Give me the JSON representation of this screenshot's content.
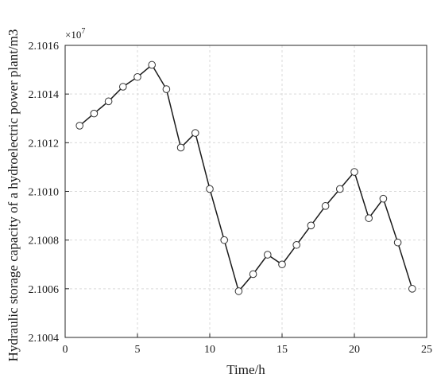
{
  "chart_data": {
    "type": "line",
    "xlabel": "Time/h",
    "ylabel": "Hydraulic storage capacity of a hydroelectric power plant/m3",
    "y_scale_label_base": "×10",
    "y_scale_label_exp": "7",
    "xlim": [
      0,
      25
    ],
    "ylim": [
      2.1004,
      2.1016
    ],
    "x_ticks": [
      0,
      5,
      10,
      15,
      20,
      25
    ],
    "x_tick_labels": [
      "0",
      "5",
      "10",
      "15",
      "20",
      "25"
    ],
    "y_ticks": [
      2.1004,
      2.1006,
      2.1008,
      2.101,
      2.1012,
      2.1014,
      2.1016
    ],
    "y_tick_labels": [
      "2.1004",
      "2.1006",
      "2.1008",
      "2.1010",
      "2.1012",
      "2.1014",
      "2.1016"
    ],
    "grid": true,
    "marker": "open-circle",
    "series": [
      {
        "x": [
          1,
          2,
          3,
          4,
          5,
          6,
          7,
          8,
          9,
          10,
          11,
          12,
          13,
          14,
          15,
          16,
          17,
          18,
          19,
          20,
          21,
          22,
          23,
          24
        ],
        "values": [
          2.10127,
          2.10132,
          2.10137,
          2.10143,
          2.10147,
          2.10152,
          2.10142,
          2.10118,
          2.10124,
          2.10101,
          2.1008,
          2.10059,
          2.10066,
          2.10074,
          2.1007,
          2.10078,
          2.10086,
          2.10094,
          2.10101,
          2.10108,
          2.10089,
          2.10097,
          2.10079,
          2.1006
        ],
        "color": "#1a1a1a"
      }
    ]
  }
}
